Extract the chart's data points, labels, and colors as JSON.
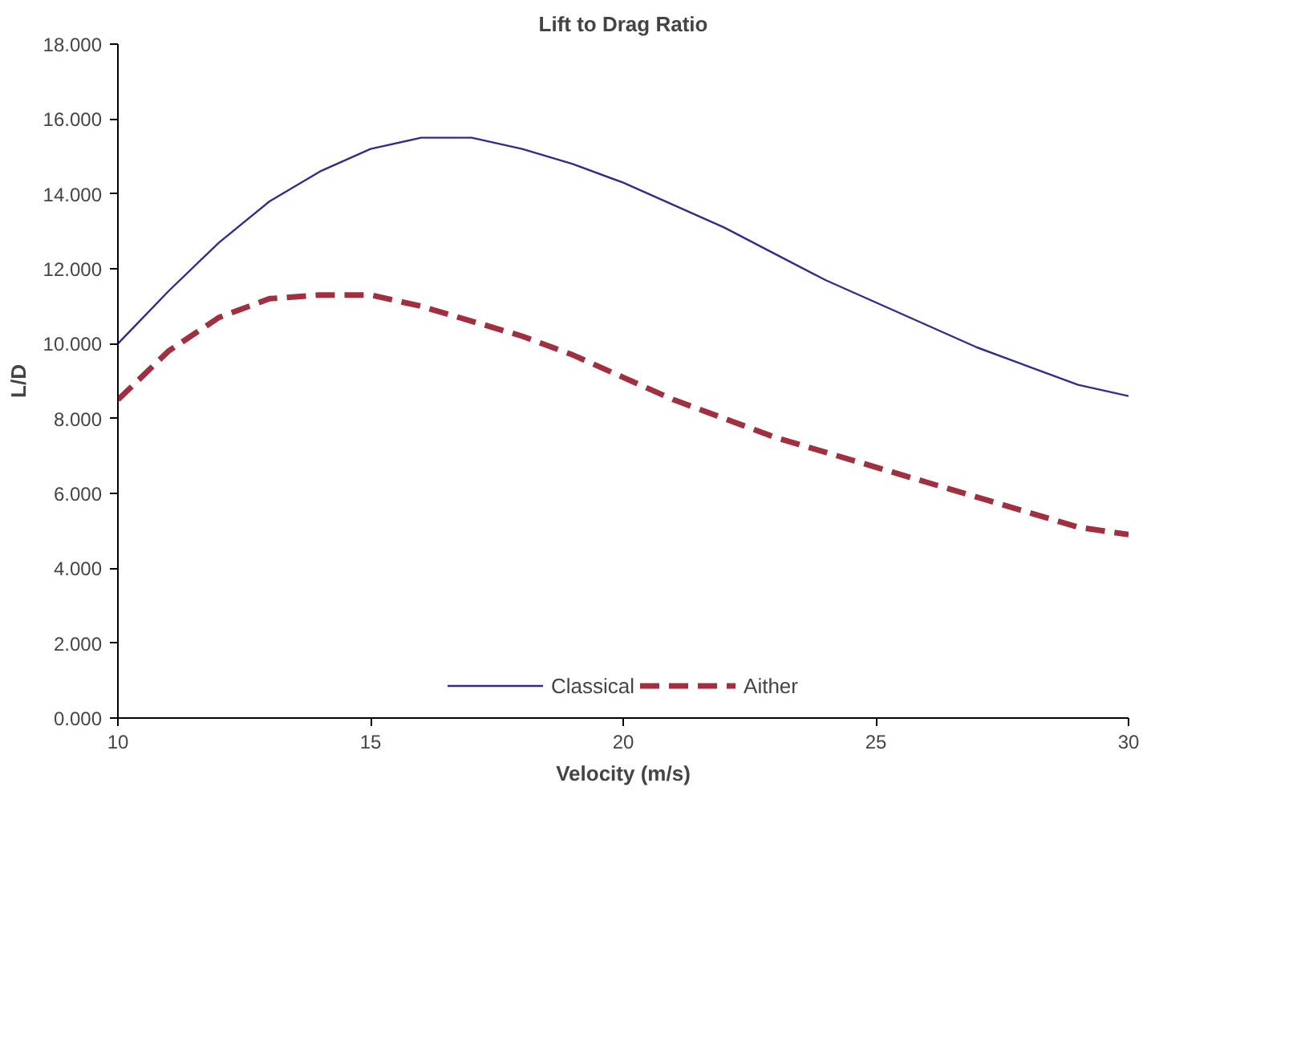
{
  "chart_data": {
    "type": "line",
    "title": "Lift to Drag Ratio",
    "xlabel": "Velocity (m/s)",
    "ylabel": "L/D",
    "x": [
      10,
      11,
      12,
      13,
      14,
      15,
      16,
      17,
      18,
      19,
      20,
      21,
      22,
      23,
      24,
      25,
      26,
      27,
      28,
      29,
      30
    ],
    "series": [
      {
        "name": "Classical",
        "color": "#2e2e8a",
        "line_style": "solid",
        "values": [
          10.0,
          11.4,
          12.7,
          13.8,
          14.6,
          15.2,
          15.5,
          15.5,
          15.2,
          14.8,
          14.3,
          13.7,
          13.1,
          12.4,
          11.7,
          11.1,
          10.5,
          9.9,
          9.4,
          8.9,
          8.6
        ]
      },
      {
        "name": "Aither",
        "color": "#a03040",
        "line_style": "dashed",
        "values": [
          8.5,
          9.8,
          10.7,
          11.2,
          11.3,
          11.3,
          11.0,
          10.6,
          10.2,
          9.7,
          9.1,
          8.5,
          8.0,
          7.5,
          7.1,
          6.7,
          6.3,
          5.9,
          5.5,
          5.1,
          4.9
        ]
      }
    ],
    "xlim": [
      10,
      30
    ],
    "xticks": [
      10,
      15,
      20,
      25,
      30
    ],
    "ylim": [
      0,
      18
    ],
    "yticks": [
      {
        "value": 0,
        "label": "0.000"
      },
      {
        "value": 2,
        "label": "2.000"
      },
      {
        "value": 4,
        "label": "4.000"
      },
      {
        "value": 6,
        "label": "6.000"
      },
      {
        "value": 8,
        "label": "8.000"
      },
      {
        "value": 10,
        "label": "10.000"
      },
      {
        "value": 12,
        "label": "12.000"
      },
      {
        "value": 14,
        "label": "14.000"
      },
      {
        "value": 16,
        "label": "16.000"
      },
      {
        "value": 18,
        "label": "18.000"
      }
    ],
    "grid": false,
    "legend": "bottom",
    "marker": "none"
  }
}
